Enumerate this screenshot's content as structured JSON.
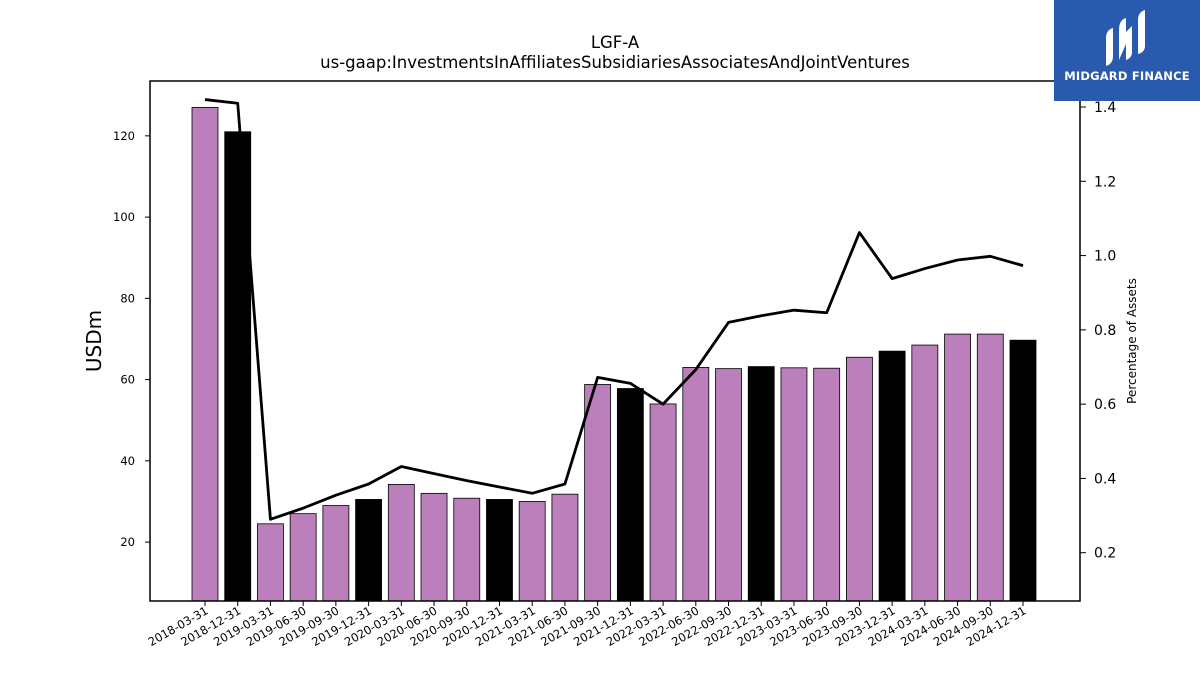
{
  "brand": {
    "name": "MIDGARD FINANCE",
    "color": "#2a5aad"
  },
  "colors": {
    "bar_regular": "#bb7fbc",
    "bar_year_end": "#000000",
    "line": "#000000"
  },
  "chart_data": {
    "type": "bar",
    "title": "LGF-A",
    "subtitle": "us-gaap:InvestmentsInAffiliatesSubsidiariesAssociatesAndJointVentures",
    "ylabel": "USDm",
    "ylabel_right": "Percentage of Assets",
    "ylim": [
      5.5,
      133.5
    ],
    "ylim_right": [
      0.07,
      1.47
    ],
    "yticks": [
      20,
      40,
      60,
      80,
      100,
      120
    ],
    "yticks_right": [
      0.2,
      0.4,
      0.6,
      0.8,
      1.0,
      1.2,
      1.4
    ],
    "categories": [
      "2018-03-31",
      "2018-12-31",
      "2019-03-31",
      "2019-06-30",
      "2019-09-30",
      "2019-12-31",
      "2020-03-31",
      "2020-06-30",
      "2020-09-30",
      "2020-12-31",
      "2021-03-31",
      "2021-06-30",
      "2021-09-30",
      "2021-12-31",
      "2022-03-31",
      "2022-06-30",
      "2022-09-30",
      "2022-12-31",
      "2023-03-31",
      "2023-06-30",
      "2023-09-30",
      "2023-12-31",
      "2024-03-31",
      "2024-06-30",
      "2024-09-30",
      "2024-12-31"
    ],
    "series": [
      {
        "values": [
          127,
          121,
          24.5,
          27,
          29,
          30.5,
          34.2,
          32,
          30.8,
          30.5,
          30,
          31.8,
          58.8,
          57.8,
          54,
          63,
          62.7,
          63.2,
          62.9,
          62.8,
          65.5,
          67,
          68.5,
          71.2,
          71.2,
          69.7
        ],
        "year_end": [
          false,
          true,
          false,
          false,
          false,
          true,
          false,
          false,
          false,
          true,
          false,
          false,
          false,
          true,
          false,
          false,
          false,
          true,
          false,
          false,
          false,
          true,
          false,
          false,
          false,
          true
        ]
      },
      {
        "axis": "right",
        "type": "line",
        "values": [
          1.42,
          1.41,
          0.29,
          0.32,
          0.355,
          0.385,
          0.432,
          0.413,
          0.394,
          0.377,
          0.36,
          0.385,
          0.672,
          0.656,
          0.6,
          0.693,
          0.82,
          0.838,
          0.853,
          0.846,
          1.062,
          0.938,
          0.965,
          0.988,
          0.998,
          0.973
        ]
      }
    ],
    "grid": false,
    "legend": "none"
  }
}
